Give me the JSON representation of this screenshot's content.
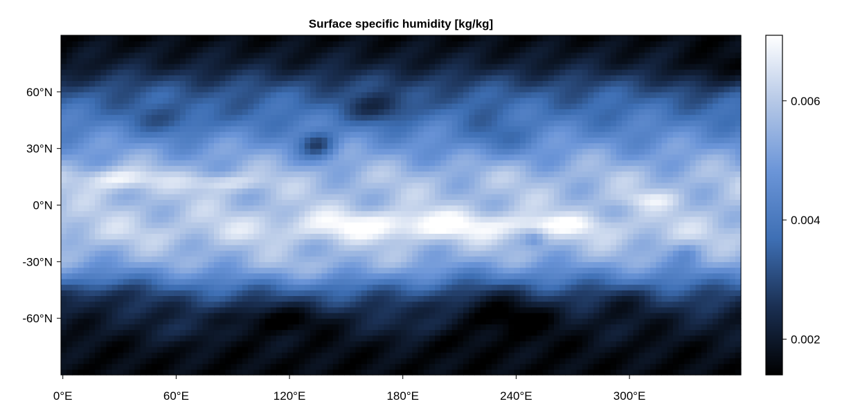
{
  "chart_data": {
    "type": "heatmap",
    "title": "Surface specific humidity [kg/kg]",
    "xlabel": "",
    "ylabel": "",
    "xlim": [
      -1,
      359
    ],
    "ylim": [
      -90,
      90
    ],
    "x_ticks": [
      {
        "value": 0,
        "label": "0°E"
      },
      {
        "value": 60,
        "label": "60°E"
      },
      {
        "value": 120,
        "label": "120°E"
      },
      {
        "value": 180,
        "label": "180°E"
      },
      {
        "value": 240,
        "label": "240°E"
      },
      {
        "value": 300,
        "label": "300°E"
      }
    ],
    "y_ticks": [
      {
        "value": 60,
        "label": "60°N"
      },
      {
        "value": 30,
        "label": "30°N"
      },
      {
        "value": 0,
        "label": "0°N"
      },
      {
        "value": -30,
        "label": "-30°N"
      },
      {
        "value": -60,
        "label": "-60°N"
      }
    ],
    "colorbar": {
      "range": [
        0.0014,
        0.0071
      ],
      "ticks": [
        {
          "value": 0.002,
          "label": "0.002"
        },
        {
          "value": 0.004,
          "label": "0.004"
        },
        {
          "value": 0.006,
          "label": "0.006"
        }
      ],
      "colormap": [
        "#000000",
        "#1a2f52",
        "#3e6fb4",
        "#6b95d8",
        "#b4c7e6",
        "#ffffff"
      ]
    },
    "grid": false,
    "field": {
      "x_step_deg": 3,
      "y_step_deg": 3,
      "base_profile": {
        "lat": [
          -90,
          -75,
          -60,
          -45,
          -30,
          -15,
          0,
          15,
          30,
          45,
          60,
          75,
          90
        ],
        "value": [
          0.0016,
          0.0017,
          0.0021,
          0.0034,
          0.0052,
          0.0061,
          0.0058,
          0.0057,
          0.0049,
          0.004,
          0.0033,
          0.0021,
          0.0016
        ]
      },
      "features": [
        {
          "lon": 30,
          "lat": 14,
          "amp": 0.0014,
          "dlon": 14,
          "dlat": 4
        },
        {
          "lon": 85,
          "lat": 12,
          "amp": 0.001,
          "dlon": 14,
          "dlat": 3
        },
        {
          "lon": 180,
          "lat": -10,
          "amp": 0.0012,
          "dlon": 45,
          "dlat": 5
        },
        {
          "lon": 260,
          "lat": -10,
          "amp": 0.0008,
          "dlon": 20,
          "dlat": 3
        },
        {
          "lon": 310,
          "lat": 3,
          "amp": 0.0007,
          "dlon": 12,
          "dlat": 3
        },
        {
          "lon": 130,
          "lat": -35,
          "amp": 0.0006,
          "dlon": 40,
          "dlat": 6
        },
        {
          "lon": 135,
          "lat": 32,
          "amp": -0.0018,
          "dlon": 7,
          "dlat": 5
        },
        {
          "lon": 250,
          "lat": -18,
          "amp": -0.0008,
          "dlon": 4,
          "dlat": 3
        },
        {
          "lon": 330,
          "lat": -25,
          "amp": -0.0006,
          "dlon": 5,
          "dlat": 4
        },
        {
          "lon": 170,
          "lat": 52,
          "amp": -0.0012,
          "dlon": 14,
          "dlat": 6
        },
        {
          "lon": 225,
          "lat": 35,
          "amp": -0.0008,
          "dlon": 15,
          "dlat": 7
        },
        {
          "lon": 60,
          "lat": 45,
          "amp": -0.0007,
          "dlon": 18,
          "dlat": 6
        },
        {
          "lon": 230,
          "lat": -55,
          "amp": -0.001,
          "dlon": 25,
          "dlat": 10
        },
        {
          "lon": 110,
          "lat": -60,
          "amp": -0.0007,
          "dlon": 20,
          "dlat": 6
        },
        {
          "lon": 20,
          "lat": -48,
          "amp": -0.0008,
          "dlon": 18,
          "dlat": 6
        },
        {
          "lon": 300,
          "lat": -50,
          "amp": -0.0006,
          "dlon": 16,
          "dlat": 6
        },
        {
          "lon": 345,
          "lat": 70,
          "amp": -0.0008,
          "dlon": 14,
          "dlat": 8
        },
        {
          "lon": 70,
          "lat": -65,
          "amp": 0.0006,
          "dlon": 12,
          "dlat": 5
        },
        {
          "lon": 190,
          "lat": -62,
          "amp": 0.0007,
          "dlon": 15,
          "dlat": 5
        }
      ]
    }
  }
}
